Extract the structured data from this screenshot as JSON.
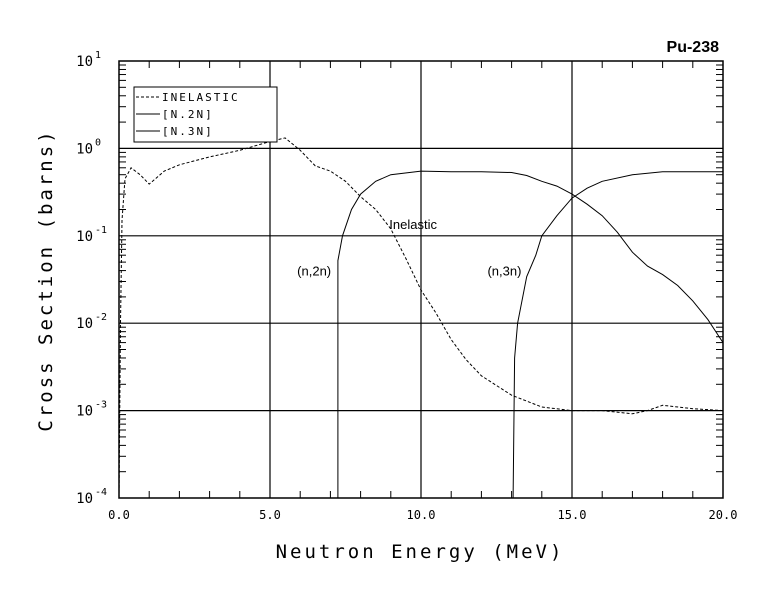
{
  "chart_data": {
    "type": "line",
    "title": "Pu-238",
    "xlabel": "Neutron Energy (MeV)",
    "ylabel": "Cross Section (barns)",
    "xlim": [
      0,
      20
    ],
    "ylim": [
      0.0001,
      10
    ],
    "yscale": "log",
    "grid": true,
    "legend_position": "top-left",
    "x_ticks": [
      0,
      5,
      10,
      15,
      20
    ],
    "x_tick_labels": [
      "0.0",
      "5.0",
      "10.0",
      "15.0",
      "20.0"
    ],
    "y_ticks": [
      -4,
      -3,
      -2,
      -1,
      0,
      1
    ],
    "y_tick_base": "10",
    "y_tick_exponents": [
      "-4",
      "-3",
      "-2",
      "-1",
      "0",
      "1"
    ],
    "series": [
      {
        "name": "INELASTIC",
        "style": "dashed",
        "x": [
          0.0,
          0.05,
          0.1,
          0.2,
          0.4,
          0.7,
          1.0,
          1.5,
          2.0,
          3.0,
          4.0,
          5.0,
          5.5,
          6.0,
          6.5,
          7.0,
          7.5,
          8.0,
          8.5,
          9.0,
          9.5,
          10.0,
          10.5,
          11.0,
          11.5,
          12.0,
          13.0,
          14.0,
          15.0,
          16.0,
          17.0,
          17.5,
          18.0,
          19.0,
          20.0
        ],
        "y": [
          0.0001,
          0.01,
          0.15,
          0.45,
          0.6,
          0.5,
          0.39,
          0.55,
          0.65,
          0.8,
          0.95,
          1.2,
          1.32,
          0.95,
          0.63,
          0.55,
          0.42,
          0.28,
          0.2,
          0.12,
          0.055,
          0.024,
          0.013,
          0.0065,
          0.0038,
          0.0025,
          0.0015,
          0.0011,
          0.001,
          0.001,
          0.00092,
          0.001,
          0.00115,
          0.00105,
          0.001
        ]
      },
      {
        "name": "(N,2N)",
        "style": "solid",
        "x": [
          7.25,
          7.25,
          7.4,
          7.7,
          8.0,
          8.5,
          9.0,
          10.0,
          11.0,
          12.0,
          13.0,
          13.5,
          14.0,
          14.5,
          15.0,
          15.5,
          16.0,
          16.5,
          17.0,
          17.5,
          18.0,
          18.5,
          19.0,
          19.5,
          20.0
        ],
        "y": [
          0.0001,
          0.052,
          0.1,
          0.2,
          0.3,
          0.42,
          0.5,
          0.55,
          0.54,
          0.54,
          0.53,
          0.49,
          0.42,
          0.37,
          0.3,
          0.23,
          0.17,
          0.11,
          0.065,
          0.045,
          0.036,
          0.027,
          0.018,
          0.011,
          0.006
        ]
      },
      {
        "name": "(N,3N)",
        "style": "solid",
        "x": [
          13.05,
          13.1,
          13.2,
          13.5,
          13.8,
          14.0,
          14.5,
          15.0,
          15.5,
          16.0,
          17.0,
          18.0,
          19.0,
          20.0
        ],
        "y": [
          0.0001,
          0.004,
          0.01,
          0.034,
          0.06,
          0.1,
          0.17,
          0.27,
          0.35,
          0.42,
          0.5,
          0.54,
          0.54,
          0.54
        ]
      }
    ],
    "legend_labels": [
      "INELASTIC",
      "[N.2N]",
      "[N.3N]"
    ],
    "annotations": [
      {
        "text": "Inelastic",
        "x": 8.95,
        "y": 0.12
      },
      {
        "text": "(n,2n)",
        "x": 5.9,
        "y": 0.035
      },
      {
        "text": "(n,3n)",
        "x": 12.2,
        "y": 0.035
      }
    ]
  }
}
